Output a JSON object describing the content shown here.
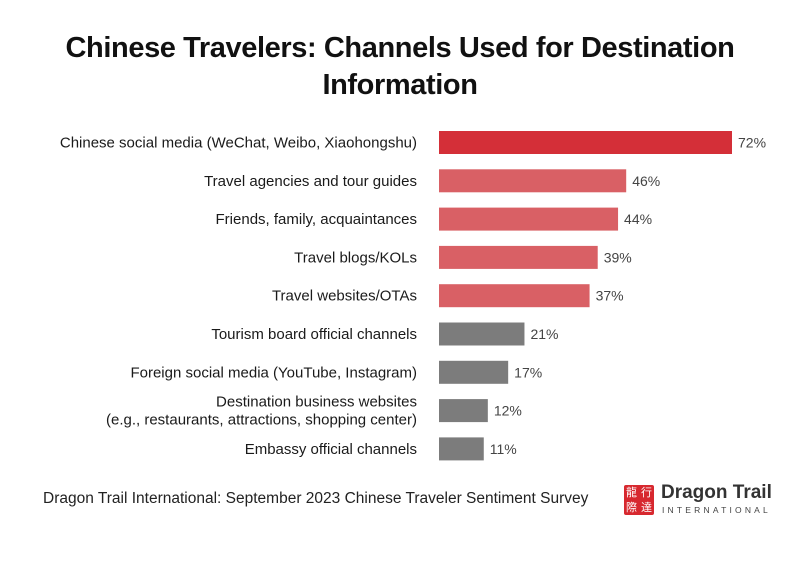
{
  "chart_data": {
    "type": "bar",
    "orientation": "horizontal",
    "title": "Chinese Travelers: Channels Used for Destination Information",
    "categories": [
      [
        "Chinese social media (WeChat, Weibo, Xiaohongshu)"
      ],
      [
        "Travel agencies and tour guides"
      ],
      [
        "Friends, family, acquaintances"
      ],
      [
        "Travel blogs/KOLs"
      ],
      [
        "Travel websites/OTAs"
      ],
      [
        "Tourism board official channels"
      ],
      [
        "Foreign social media (YouTube, Instagram)"
      ],
      [
        "Destination business websites",
        "(e.g., restaurants, attractions, shopping center)"
      ],
      [
        "Embassy official channels"
      ]
    ],
    "values": [
      72,
      46,
      44,
      39,
      37,
      21,
      17,
      12,
      11
    ],
    "value_labels": [
      "72%",
      "46%",
      "44%",
      "39%",
      "37%",
      "21%",
      "17%",
      "12%",
      "11%"
    ],
    "bar_colors": [
      "#d42f38",
      "#d96065",
      "#d96065",
      "#d96065",
      "#d96065",
      "#7c7c7c",
      "#7c7c7c",
      "#7c7c7c",
      "#7c7c7c"
    ],
    "xlim": [
      0,
      72
    ],
    "grid": false,
    "legend": "none"
  },
  "source": "Dragon Trail International: September 2023 Chinese Traveler Sentiment Survey",
  "logo": {
    "name": "Dragon Trail",
    "subtitle": "INTERNATIONAL",
    "mark_chars": [
      "龍",
      "行",
      "際",
      "達"
    ],
    "color": "#d7282f"
  }
}
